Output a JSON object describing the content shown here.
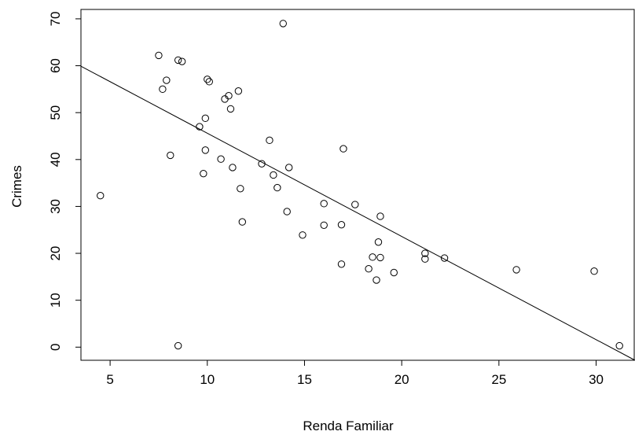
{
  "chart_data": {
    "type": "scatter",
    "title": "",
    "xlabel": "Renda Familiar",
    "ylabel": "Crimes",
    "xlim": [
      3.5,
      32.0
    ],
    "ylim": [
      -2.8,
      72.0
    ],
    "xticks": [
      5,
      10,
      15,
      20,
      25,
      30
    ],
    "yticks": [
      0,
      10,
      20,
      30,
      40,
      50,
      60,
      70
    ],
    "grid": false,
    "legend": "none",
    "marker": "open-circle",
    "colors": {
      "points": "#000000",
      "line": "#000000",
      "frame": "#000000"
    },
    "points": [
      {
        "x": 4.5,
        "y": 32.3
      },
      {
        "x": 7.5,
        "y": 62.2
      },
      {
        "x": 7.7,
        "y": 55.0
      },
      {
        "x": 7.9,
        "y": 56.9
      },
      {
        "x": 8.1,
        "y": 40.9
      },
      {
        "x": 8.5,
        "y": 61.2
      },
      {
        "x": 8.7,
        "y": 60.9
      },
      {
        "x": 8.5,
        "y": 0.3
      },
      {
        "x": 9.6,
        "y": 47.0
      },
      {
        "x": 9.8,
        "y": 37.0
      },
      {
        "x": 9.9,
        "y": 48.8
      },
      {
        "x": 9.9,
        "y": 42.0
      },
      {
        "x": 10.0,
        "y": 57.1
      },
      {
        "x": 10.1,
        "y": 56.6
      },
      {
        "x": 10.7,
        "y": 40.1
      },
      {
        "x": 10.9,
        "y": 52.9
      },
      {
        "x": 11.1,
        "y": 53.6
      },
      {
        "x": 11.2,
        "y": 50.8
      },
      {
        "x": 11.3,
        "y": 38.3
      },
      {
        "x": 11.6,
        "y": 54.6
      },
      {
        "x": 11.7,
        "y": 33.8
      },
      {
        "x": 11.8,
        "y": 26.7
      },
      {
        "x": 12.8,
        "y": 39.1
      },
      {
        "x": 13.2,
        "y": 44.1
      },
      {
        "x": 13.4,
        "y": 36.7
      },
      {
        "x": 13.6,
        "y": 34.0
      },
      {
        "x": 13.9,
        "y": 69.0
      },
      {
        "x": 14.1,
        "y": 28.9
      },
      {
        "x": 14.2,
        "y": 38.3
      },
      {
        "x": 14.9,
        "y": 23.9
      },
      {
        "x": 16.0,
        "y": 30.6
      },
      {
        "x": 16.0,
        "y": 26.0
      },
      {
        "x": 17.0,
        "y": 42.3
      },
      {
        "x": 16.9,
        "y": 26.1
      },
      {
        "x": 16.9,
        "y": 17.7
      },
      {
        "x": 17.6,
        "y": 30.4
      },
      {
        "x": 18.3,
        "y": 16.7
      },
      {
        "x": 18.5,
        "y": 19.2
      },
      {
        "x": 18.7,
        "y": 14.3
      },
      {
        "x": 18.8,
        "y": 22.4
      },
      {
        "x": 18.9,
        "y": 27.9
      },
      {
        "x": 18.9,
        "y": 19.1
      },
      {
        "x": 19.6,
        "y": 15.9
      },
      {
        "x": 21.2,
        "y": 20.0
      },
      {
        "x": 21.2,
        "y": 18.8
      },
      {
        "x": 22.2,
        "y": 19.0
      },
      {
        "x": 25.9,
        "y": 16.5
      },
      {
        "x": 29.9,
        "y": 16.2
      },
      {
        "x": 31.2,
        "y": 0.3
      }
    ],
    "regression_line": {
      "intercept": 67.6,
      "slope": -2.2
    }
  }
}
